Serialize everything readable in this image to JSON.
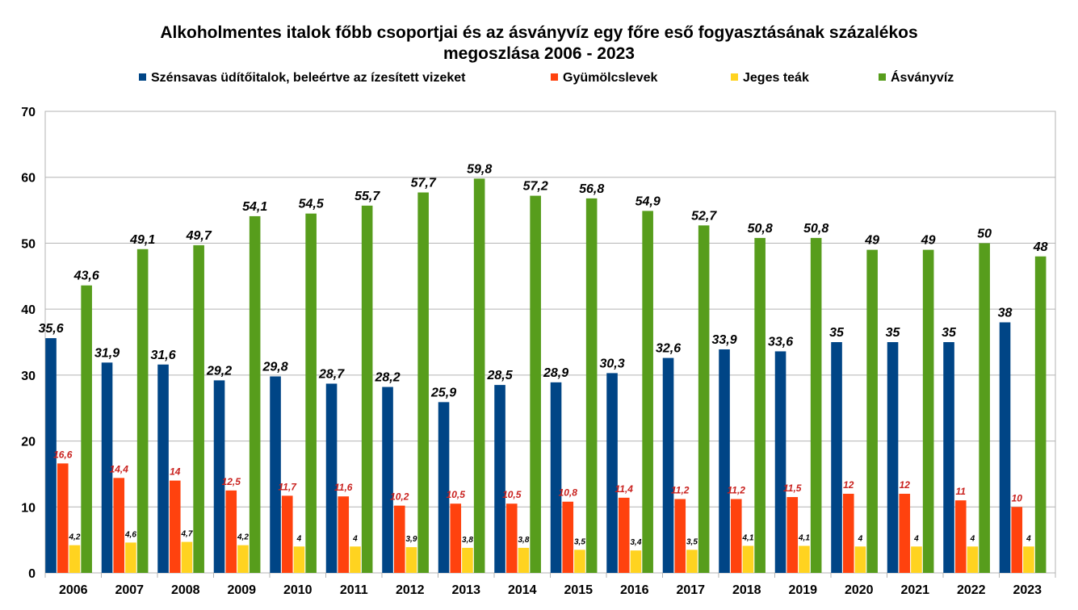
{
  "chart_data": {
    "type": "bar",
    "title_line1": "Alkoholmentes italok főbb csoportjai és az ásványvíz egy főre eső fogyasztásának százalékos",
    "title_line2": "megoszlása 2006 - 2023",
    "xlabel": "",
    "ylabel": "",
    "ylim": [
      0,
      70
    ],
    "yticks": [
      0,
      10,
      20,
      30,
      40,
      50,
      60,
      70
    ],
    "grid": true,
    "legend_position": "top",
    "categories": [
      "2006",
      "2007",
      "2008",
      "2009",
      "2010",
      "2011",
      "2012",
      "2013",
      "2014",
      "2015",
      "2016",
      "2017",
      "2018",
      "2019",
      "2020",
      "2021",
      "2022",
      "2023"
    ],
    "series": [
      {
        "name": "Szénsavas üdítőitalok, beleértve az ízesített vizeket",
        "color": "#004586",
        "values": [
          35.6,
          31.9,
          31.6,
          29.2,
          29.8,
          28.7,
          28.2,
          25.9,
          28.5,
          28.9,
          30.3,
          32.6,
          33.9,
          33.6,
          35,
          35,
          35,
          38
        ],
        "labels": [
          "35,6",
          "31,9",
          "31,6",
          "29,2",
          "29,8",
          "28,7",
          "28,2",
          "25,9",
          "28,5",
          "28,9",
          "30,3",
          "32,6",
          "33,9",
          "33,6",
          "35",
          "35",
          "35",
          "38"
        ]
      },
      {
        "name": "Gyümölcslevek",
        "color": "#ff420e",
        "values": [
          16.6,
          14.4,
          14,
          12.5,
          11.7,
          11.6,
          10.2,
          10.5,
          10.5,
          10.8,
          11.4,
          11.2,
          11.2,
          11.5,
          12,
          12,
          11,
          10
        ],
        "labels": [
          "16,6",
          "14,4",
          "14",
          "12,5",
          "11,7",
          "11,6",
          "10,2",
          "10,5",
          "10,5",
          "10,8",
          "11,4",
          "11,2",
          "11,2",
          "11,5",
          "12",
          "12",
          "11",
          "10"
        ]
      },
      {
        "name": "Jeges teák",
        "color": "#ffd320",
        "values": [
          4.2,
          4.6,
          4.7,
          4.2,
          4,
          4,
          3.9,
          3.8,
          3.8,
          3.5,
          3.4,
          3.5,
          4.1,
          4.1,
          4,
          4,
          4,
          4
        ],
        "labels": [
          "4,2",
          "4,6",
          "4,7",
          "4,2",
          "4",
          "4",
          "3,9",
          "3,8",
          "3,8",
          "3,5",
          "3,4",
          "3,5",
          "4,1",
          "4,1",
          "4",
          "4",
          "4",
          "4"
        ]
      },
      {
        "name": "Ásványvíz",
        "color": "#579d1c",
        "values": [
          43.6,
          49.1,
          49.7,
          54.1,
          54.5,
          55.7,
          57.7,
          59.8,
          57.2,
          56.8,
          54.9,
          52.7,
          50.8,
          50.8,
          49,
          49,
          50,
          48
        ],
        "labels": [
          "43,6",
          "49,1",
          "49,7",
          "54,1",
          "54,5",
          "55,7",
          "57,7",
          "59,8",
          "57,2",
          "56,8",
          "54,9",
          "52,7",
          "50,8",
          "50,8",
          "49",
          "49",
          "50",
          "48"
        ]
      }
    ]
  }
}
